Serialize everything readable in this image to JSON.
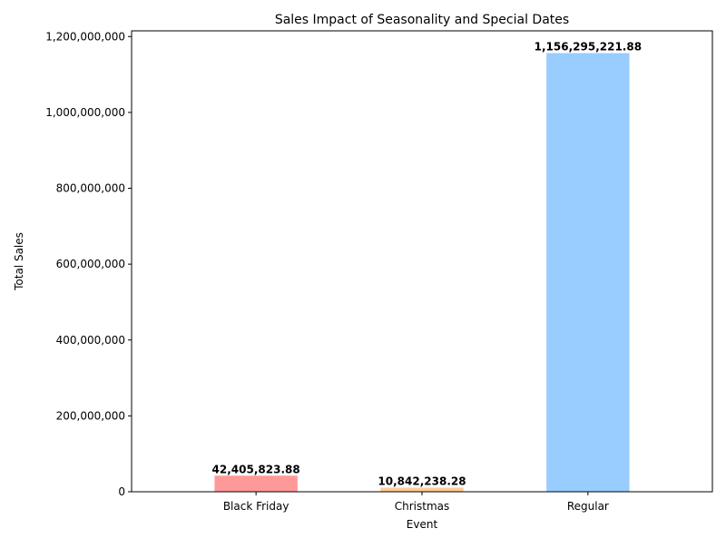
{
  "chart_data": {
    "type": "bar",
    "title": "Sales Impact of Seasonality and Special Dates",
    "xlabel": "Event",
    "ylabel": "Total Sales",
    "categories": [
      "Black Friday",
      "Christmas",
      "Regular"
    ],
    "values": [
      42405823.88,
      10842238.28,
      1156295221.88
    ],
    "value_labels": [
      "42,405,823.88",
      "10,842,238.28",
      "1,156,295,221.88"
    ],
    "colors": [
      "#ff9999",
      "#ffcc99",
      "#99ccff"
    ],
    "ylim": [
      0,
      1215000000
    ],
    "yticks": [
      0,
      200000000,
      400000000,
      600000000,
      800000000,
      1000000000,
      1200000000
    ],
    "ytick_labels": [
      "0",
      "200,000,000",
      "400,000,000",
      "600,000,000",
      "800,000,000",
      "1,000,000,000",
      "1,200,000,000"
    ],
    "grid": false,
    "legend": "none"
  }
}
